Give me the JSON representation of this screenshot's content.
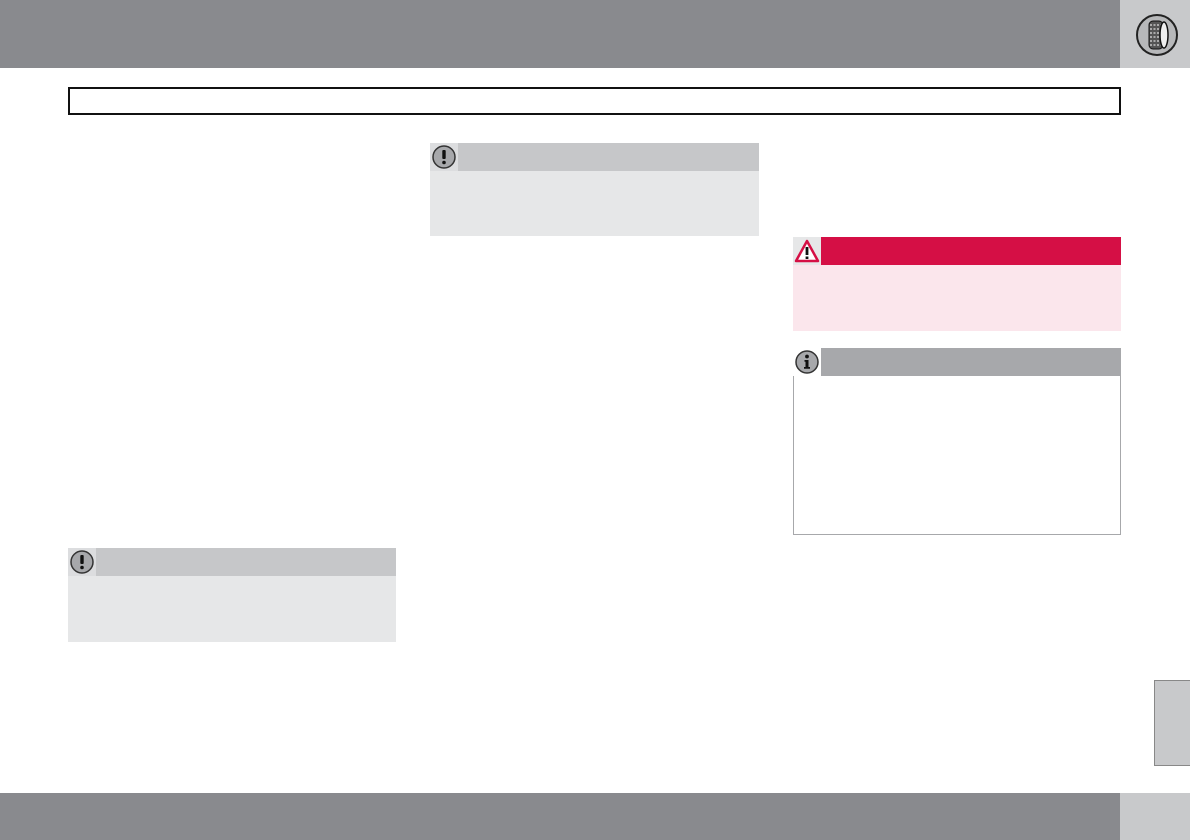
{
  "header": {
    "chapter_icon": "tire-icon",
    "bar_color": "#898a8e",
    "tab_color": "#c8c9cb"
  },
  "title_box": {
    "title": ""
  },
  "notes": [
    {
      "type": "important",
      "icon": "exclamation-circle-icon",
      "header_color": "#c6c7c9",
      "body_color": "#e6e7e8"
    },
    {
      "type": "important",
      "icon": "exclamation-circle-icon",
      "header_color": "#c6c7c9",
      "body_color": "#e6e7e8"
    },
    {
      "type": "warning",
      "icon": "warning-triangle-icon",
      "header_color": "#d50f45",
      "body_color": "#fbe6ec"
    },
    {
      "type": "info",
      "icon": "info-circle-icon",
      "header_color": "#a7a8ab",
      "body_color": "#ffffff"
    }
  ],
  "footer": {
    "page_number": ""
  }
}
